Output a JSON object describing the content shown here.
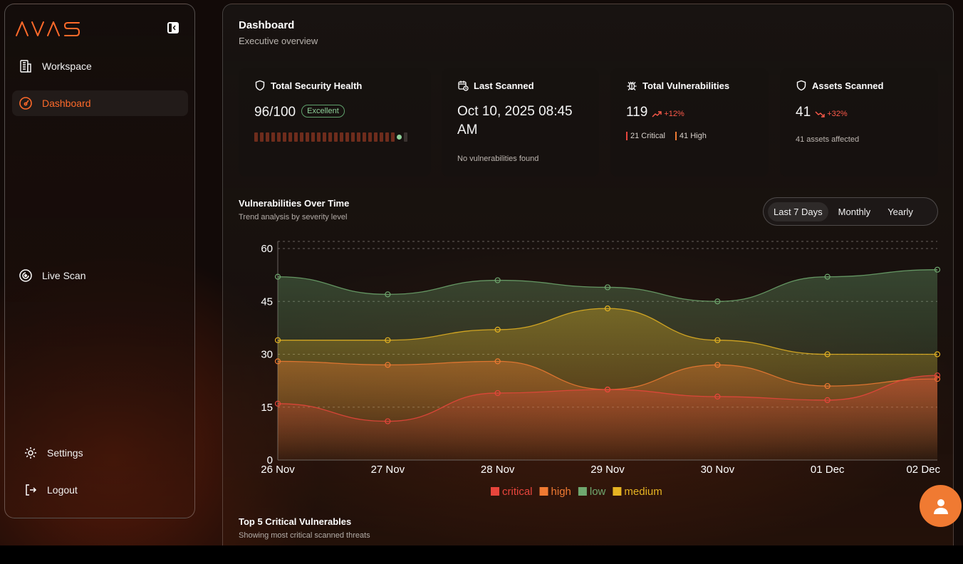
{
  "brand": {
    "logo_text": "AVAS",
    "accent": "#ff6a2a"
  },
  "sidebar": {
    "items": [
      {
        "label": "Workspace",
        "icon": "building-icon"
      },
      {
        "label": "Dashboard",
        "icon": "gauge-icon",
        "active": true
      },
      {
        "label": "Live Scan",
        "icon": "radar-icon"
      },
      {
        "label": "Settings",
        "icon": "gear-icon"
      },
      {
        "label": "Logout",
        "icon": "logout-icon"
      }
    ]
  },
  "header": {
    "title": "Dashboard",
    "subtitle": "Executive overview"
  },
  "cards": {
    "health": {
      "title": "Total Security Health",
      "value": "96/100",
      "badge": "Excellent",
      "score": 96
    },
    "last_scanned": {
      "title": "Last Scanned",
      "value_line1": "Oct 10, 2025 08:45",
      "value_line2": "AM",
      "note": "No vulnerabilities found"
    },
    "vulns": {
      "title": "Total Vulnerabilities",
      "value": "119",
      "trend": "+12%",
      "critical": "21 Critical",
      "high": "41 High"
    },
    "assets": {
      "title": "Assets Scanned",
      "value": "41",
      "trend": "+32%",
      "note": "41 assets affected"
    }
  },
  "trend_section": {
    "title": "Vulnerabilities Over Time",
    "subtitle": "Trend analysis by severity level",
    "ranges": [
      "Last 7 Days",
      "Monthly",
      "Yearly"
    ],
    "selected_range": "Last 7 Days"
  },
  "chart_data": {
    "type": "area",
    "title": "",
    "categories": [
      "26 Nov",
      "27 Nov",
      "28 Nov",
      "29 Nov",
      "30 Nov",
      "01 Dec",
      "02 Dec"
    ],
    "yticks": [
      0,
      15,
      30,
      45,
      60
    ],
    "ylim": [
      0,
      60
    ],
    "grid": true,
    "legend_position": "bottom",
    "series": [
      {
        "name": "low",
        "color": "#6fa86f",
        "values": [
          52,
          47,
          51,
          49,
          45,
          52,
          54
        ]
      },
      {
        "name": "medium",
        "color": "#e6b422",
        "values": [
          34,
          34,
          37,
          43,
          34,
          30,
          30
        ]
      },
      {
        "name": "high",
        "color": "#f07a32",
        "values": [
          28,
          27,
          28,
          20,
          27,
          21,
          23
        ]
      },
      {
        "name": "critical",
        "color": "#e8453c",
        "values": [
          16,
          11,
          19,
          20,
          18,
          17,
          24
        ]
      }
    ],
    "legend_order": [
      "critical",
      "high",
      "low",
      "medium"
    ]
  },
  "critical_section": {
    "title": "Top 5 Critical Vulnerables",
    "subtitle": "Showing most critical scanned threats"
  }
}
